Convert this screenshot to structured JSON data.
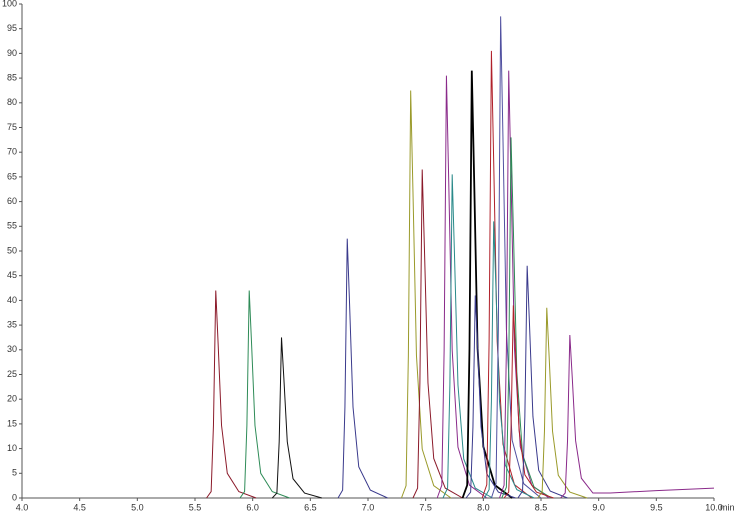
{
  "chart_data": {
    "type": "line",
    "x_label": "min",
    "xlim": [
      4,
      10
    ],
    "xticks": [
      {
        "value": 4,
        "label": "4.0"
      },
      {
        "value": 4.5,
        "label": "4.5"
      },
      {
        "value": 5,
        "label": "5.0"
      },
      {
        "value": 5.5,
        "label": "5.5"
      },
      {
        "value": 6,
        "label": "6.0"
      },
      {
        "value": 6.5,
        "label": "6.5"
      },
      {
        "value": 7,
        "label": "7.0"
      },
      {
        "value": 7.5,
        "label": "7.5"
      },
      {
        "value": 8,
        "label": "8.0"
      },
      {
        "value": 8.5,
        "label": "8.5"
      },
      {
        "value": 9,
        "label": "9.0"
      },
      {
        "value": 9.5,
        "label": "9.5"
      },
      {
        "value": 10,
        "label": "10.0"
      }
    ],
    "ylim": [
      0,
      100
    ],
    "yticks": [
      0,
      5,
      10,
      15,
      20,
      25,
      30,
      35,
      40,
      45,
      50,
      55,
      60,
      65,
      70,
      75,
      80,
      85,
      90,
      95,
      100
    ],
    "series": [
      {
        "color": "#8b1a2a",
        "x": [
          5.6,
          5.64,
          5.66,
          5.68,
          5.7,
          5.73,
          5.78,
          5.88,
          6.03
        ],
        "values": [
          0,
          1.3,
          14.7,
          42,
          31.5,
          14.7,
          5,
          1.3,
          0
        ]
      },
      {
        "color": "#2e8b57",
        "x": [
          5.89,
          5.93,
          5.95,
          5.97,
          5.99,
          6.02,
          6.07,
          6.17,
          6.32
        ],
        "values": [
          0,
          1.3,
          14.7,
          42,
          31.5,
          14.7,
          5,
          1.3,
          0
        ]
      },
      {
        "color": "#111111",
        "x": [
          6.17,
          6.21,
          6.23,
          6.25,
          6.27,
          6.3,
          6.35,
          6.45,
          6.6
        ],
        "values": [
          0,
          1,
          11.4,
          32.5,
          24.4,
          11.4,
          3.9,
          1,
          0
        ]
      },
      {
        "color": "#3a3a8c",
        "x": [
          6.74,
          6.78,
          6.8,
          6.82,
          6.84,
          6.87,
          6.92,
          7.02,
          7.17
        ],
        "values": [
          0,
          1.6,
          18.4,
          52.5,
          39.4,
          18.4,
          6.3,
          1.6,
          0
        ]
      },
      {
        "color": "#9a9a2a",
        "x": [
          7.29,
          7.33,
          7.35,
          7.37,
          7.39,
          7.42,
          7.47,
          7.57,
          7.72
        ],
        "values": [
          0,
          2.5,
          28.9,
          82.5,
          61.9,
          28.9,
          9.9,
          2.5,
          0
        ]
      },
      {
        "color": "#8b1a2a",
        "x": [
          7.39,
          7.43,
          7.45,
          7.47,
          7.49,
          7.52,
          7.57,
          7.67,
          7.82
        ],
        "values": [
          0,
          2,
          23.3,
          66.5,
          49.9,
          23.3,
          8,
          2,
          0
        ]
      },
      {
        "color": "#8a2a8a",
        "x": [
          7.6,
          7.64,
          7.66,
          7.68,
          7.7,
          7.73,
          7.78,
          7.88,
          8.03
        ],
        "values": [
          0,
          2.6,
          29.9,
          85.5,
          64.1,
          29.9,
          10.3,
          2.6,
          0
        ]
      },
      {
        "color": "#2a8a8a",
        "x": [
          7.65,
          7.69,
          7.71,
          7.73,
          7.75,
          7.78,
          7.83,
          7.93,
          8.08
        ],
        "values": [
          0,
          2,
          22.9,
          65.5,
          49.1,
          22.9,
          7.9,
          2,
          0
        ]
      },
      {
        "color": "#000000",
        "x": [
          7.82,
          7.86,
          7.88,
          7.9,
          7.92,
          7.95,
          8,
          8.1,
          8.25
        ],
        "values": [
          0,
          2.6,
          30.3,
          86.5,
          64.9,
          30.3,
          10.4,
          2.6,
          0
        ]
      },
      {
        "color": "#3a3a8c",
        "x": [
          7.85,
          7.89,
          7.91,
          7.93,
          7.95,
          7.98,
          8.03,
          8.13,
          8.28
        ],
        "values": [
          0,
          1.2,
          14.4,
          41,
          30.8,
          14.4,
          4.9,
          1.2,
          0
        ]
      },
      {
        "color": "#b0202a",
        "x": [
          7.99,
          8.03,
          8.05,
          8.07,
          8.09,
          8.12,
          8.17,
          8.27,
          8.42
        ],
        "values": [
          0,
          2.7,
          31.7,
          90.5,
          67.9,
          31.7,
          10.9,
          2.7,
          0
        ]
      },
      {
        "color": "#2a8a8a",
        "x": [
          8.01,
          8.05,
          8.07,
          8.09,
          8.11,
          8.14,
          8.19,
          8.29,
          8.44
        ],
        "values": [
          0,
          1.7,
          19.6,
          56,
          42,
          19.6,
          6.7,
          1.7,
          0
        ]
      },
      {
        "color": "#5050a0",
        "x": [
          8.07,
          8.11,
          8.13,
          8.15,
          8.17,
          8.2,
          8.25,
          8.35,
          8.5
        ],
        "values": [
          0,
          2.9,
          34.1,
          97.5,
          73.1,
          34.1,
          11.7,
          2.9,
          0
        ]
      },
      {
        "color": "#8a2a8a",
        "x": [
          8.14,
          8.18,
          8.2,
          8.22,
          8.24,
          8.27,
          8.32,
          8.42,
          8.57
        ],
        "values": [
          0,
          2.6,
          30.3,
          86.5,
          64.9,
          30.3,
          10.4,
          2.6,
          0
        ]
      },
      {
        "color": "#2e8b57",
        "x": [
          8.16,
          8.2,
          8.22,
          8.24,
          8.26,
          8.29,
          8.34,
          8.44,
          8.59
        ],
        "values": [
          0,
          2.2,
          25.6,
          73,
          54.8,
          25.6,
          8.8,
          2.2,
          0
        ]
      },
      {
        "color": "#b0202a",
        "x": [
          8.18,
          8.22,
          8.24,
          8.26,
          8.28,
          8.31,
          8.36,
          8.46,
          8.61
        ],
        "values": [
          0,
          1.2,
          13.7,
          39,
          29.3,
          13.7,
          4.7,
          1.2,
          0
        ]
      },
      {
        "color": "#3a3a8c",
        "x": [
          8.3,
          8.34,
          8.36,
          8.38,
          8.4,
          8.43,
          8.48,
          8.58,
          8.73
        ],
        "values": [
          0,
          1.4,
          16.5,
          47,
          35.3,
          16.5,
          5.6,
          1.4,
          0
        ]
      },
      {
        "color": "#9a9a2a",
        "x": [
          8.47,
          8.51,
          8.53,
          8.55,
          8.57,
          8.6,
          8.65,
          8.75,
          8.9
        ],
        "values": [
          0,
          1.2,
          13.5,
          38.5,
          28.9,
          13.5,
          4.6,
          1.2,
          0
        ]
      },
      {
        "color": "#8a2a8a",
        "x": [
          8.67,
          8.71,
          8.73,
          8.75,
          8.77,
          8.8,
          8.85,
          8.95,
          9.1,
          9.5,
          10
        ],
        "values": [
          0,
          1,
          11.6,
          33,
          24.8,
          11.6,
          4,
          1,
          1,
          1.5,
          2
        ]
      }
    ]
  }
}
